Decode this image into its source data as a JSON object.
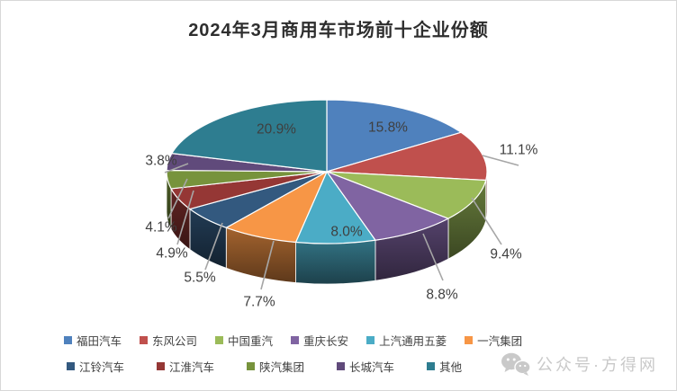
{
  "title": "2024年3月商用车市场前十企业份额",
  "chart_data": {
    "type": "pie",
    "style": "3d-pie",
    "title": "2024年3月商用车市场前十企业份额",
    "unit": "percent",
    "direction": "clockwise",
    "start_angle_deg": 0,
    "legend_position": "bottom",
    "categories": [
      "福田汽车",
      "东风公司",
      "中国重汽",
      "重庆长安",
      "上汽通用五菱",
      "一汽集团",
      "江铃汽车",
      "江淮汽车",
      "陕汽集团",
      "长城汽车",
      "其他"
    ],
    "values": [
      15.8,
      11.1,
      9.4,
      8.8,
      8.0,
      7.7,
      5.5,
      4.9,
      4.1,
      3.8,
      20.9
    ],
    "labels": [
      "15.8%",
      "11.1%",
      "9.4%",
      "8.8%",
      "8.0%",
      "7.7%",
      "5.5%",
      "4.9%",
      "4.1%",
      "3.8%",
      "20.9%"
    ],
    "colors": [
      "#4F81BD",
      "#C0504D",
      "#9BBB59",
      "#8064A2",
      "#4BACC6",
      "#F79646",
      "#33597F",
      "#953735",
      "#77933C",
      "#604A7B",
      "#2E7D90"
    ]
  },
  "watermark": {
    "icon": "wechat-icon",
    "text": "公众号·方得网"
  }
}
